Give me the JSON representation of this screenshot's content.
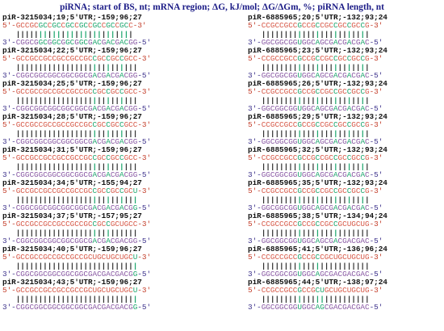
{
  "title": "piRNA; start of BS, nt; mRNA region; ΔG, kJ/mol; ΔG/ΔGm, %; piRNA length, nt",
  "colors": {
    "title": "#1b1b86",
    "mrna_strand": "#d75a49",
    "pirna_strand": "#8a5aa4",
    "noncanonical_pair": "#1ea66e",
    "pairing_bars": "#333333"
  },
  "left_column": [
    {
      "header": "piR-3215034;19;5'UTR;-159;96;27",
      "mrna": "5'-GCCGCGCCGCCGCCGCCGCCGCCGCC-3'",
      "bars": "   |||||||||||||||||||||||||",
      "pirna": "3'-CGGCGGCGGCGGCGGCGACGACGACGG-5'"
    },
    {
      "header": "piR-3215034;22;5'UTR;-159;96;27",
      "mrna": "5'-GCCGCCGCCGCCGCCGCCGCCGCCGCC-3'",
      "bars": "   |||||||||||||||||||||||||",
      "pirna": "3'-CGGCGGCGGCGGCGGCGACGACGACGG-5'"
    },
    {
      "header": "piR-3215034;25;5'UTR;-159;96;27",
      "mrna": "5'-GCCGCCGCCGCCGCCGCCGCCGCCGCC-3'",
      "bars": "   |||||||||||||||||||||||||",
      "pirna": "3'-CGGCGGCGGCGGCGGCGACGACGACGG-5'"
    },
    {
      "header": "piR-3215034;28;5'UTR;-159;96;27",
      "mrna": "5'-GCCGCCGCCGCCGCCGCCGCCGCCGCC-3'",
      "bars": "   |||||||||||||||||||||||||",
      "pirna": "3'-CGGCGGCGGCGGCGGCGACGACGACGG-5'"
    },
    {
      "header": "piR-3215034;31;5'UTR;-159;96;27",
      "mrna": "5'-GCCGCCGCCGCCGCCGCCGCCGCCGCC-3'",
      "bars": "   |||||||||||||||||||||||||",
      "pirna": "3'-CGGCGGCGGCGGCGGCGACGACGACGG-5'"
    },
    {
      "header": "piR-3215034;34;5'UTR;-155;94;27",
      "mrna": "5'-GCCGCCGCCGCCGCCGCCGCCGCCGCU-3'",
      "bars": "   |||||||||||||||||||||||||",
      "pirna": "3'-CGGCGGCGGCGGCGGCGACGACGACGG-5'"
    },
    {
      "header": "piR-3215034;37;5'UTR;-157;95;27",
      "mrna": "5'-GCCGCCGCCGCCGCCGCCGCCGCUGCC-3'",
      "bars": "   |||||||||||||||||||||||||",
      "pirna": "3'-CGGCGGCGGCGGCGGCGACGACGACGG-5'"
    },
    {
      "header": "piR-3215034;40;5'UTR;-159;96;27",
      "mrna": "5'-GCCGCCGCCGCCGCCGCUGCUGCUGCU-3'",
      "bars": "   |||||||||||||||||||||||||",
      "pirna": "3'-CGGCGGCGGCGGCGGCGACGACGACGG-5'"
    },
    {
      "header": "piR-3215034;43;5'UTR;-159;96;27",
      "mrna": "5'-GCCGCCGCCGCCGCCGCUGCUGCUGCU-3'",
      "bars": "   |||||||||||||||||||||||||",
      "pirna": "3'-CGGCGGCGGCGGCGGCGACGACGACGG-5'"
    }
  ],
  "right_column": [
    {
      "header": "piR-6885965;20;5'UTR;-132;93;24",
      "mrna": "5'-CCGCCGCCGCCGCCGCCGCCGCCG-3'",
      "bars": "   ||||||||||||||||||||||",
      "pirna": "3'-GGCGGCGGUGGCAGCGACGACGAC-5'"
    },
    {
      "header": "piR-6885965;23;5'UTR;-132;93;24",
      "mrna": "5'-CCGCCGCCGCCGCCGCCGCCGCCG-3'",
      "bars": "   ||||||||||||||||||||||",
      "pirna": "3'-GGCGGCGGUGGCAGCGACGACGAC-5'"
    },
    {
      "header": "piR-6885965;26;5'UTR;-132;93;24",
      "mrna": "5'-CCGCCGCCGCCGCCGCCGCCGCCG-3'",
      "bars": "   ||||||||||||||||||||||",
      "pirna": "3'-GGCGGCGGUGGCAGCGACGACGAC-5'"
    },
    {
      "header": "piR-6885965;29;5'UTR;-132;93;24",
      "mrna": "5'-CCGCCGCCGCCGCCGCCGCCGCCG-3'",
      "bars": "   ||||||||||||||||||||||",
      "pirna": "3'-GGCGGCGGUGGCAGCGACGACGAC-5'"
    },
    {
      "header": "piR-6885965;32;5'UTR;-132;93;24",
      "mrna": "5'-CCGCCGCCGCCGCCGCCGCCGCCG-3'",
      "bars": "   ||||||||||||||||||||||",
      "pirna": "3'-GGCGGCGGUGGCAGCGACGACGAC-5'"
    },
    {
      "header": "piR-6885965;35;5'UTR;-132;93;24",
      "mrna": "5'-CCGCCGCCGCCGCCGCCGCCGCCG-3'",
      "bars": "   ||||||||||||||||||||||",
      "pirna": "3'-GGCGGCGGUGGCAGCGACGACGAC-5'"
    },
    {
      "header": "piR-6885965;38;5'UTR;-134;94;24",
      "mrna": "5'-CCGCCGCCGCCGCCGCCGCUGCUG-3'",
      "bars": "   ||||||||||||||||||||||",
      "pirna": "3'-GGCGGCGGUGGCAGCGACGACGAC-5'"
    },
    {
      "header": "piR-6885965;41;5'UTR;-136;96;24",
      "mrna": "5'-CCGCCGCCGCCGCCGCUGCUGCUG-3'",
      "bars": "   ||||||||||||||||||||||",
      "pirna": "3'-GGCGGCGGUGGCAGCGACGACGAC-5'"
    },
    {
      "header": "piR-6885965;44;5'UTR;-138;97;24",
      "mrna": "5'-CCGCCGCCGCCGCUGCUGCUGCUG-3'",
      "bars": "   ||||||||||||||||||||||",
      "pirna": "3'-GGCGGCGGUGGCAGCGACGACGAC-5'"
    }
  ]
}
